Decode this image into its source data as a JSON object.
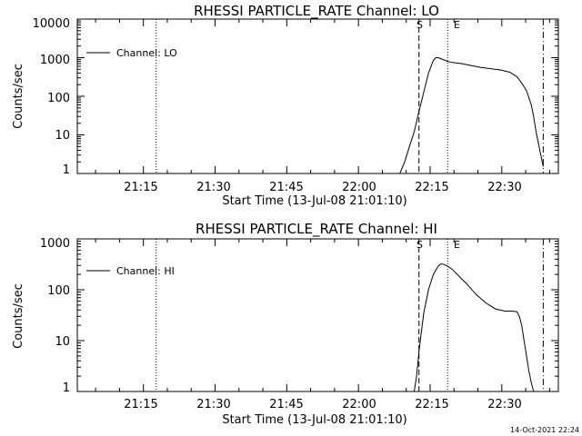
{
  "timestamp": "14-Oct-2021 22:24",
  "chart_data": [
    {
      "type": "line",
      "title": "RHESSI PARTICLE_RATE Channel: LO",
      "xlabel": "Start Time (13-Jul-08 21:01:10)",
      "ylabel": "Counts/sec",
      "yscale": "log",
      "ylim": [
        1,
        10000
      ],
      "xlim": [
        "21:01:10",
        "22:41:50"
      ],
      "x_ticks": [
        "21:15",
        "21:30",
        "21:45",
        "22:00",
        "22:15",
        "22:30"
      ],
      "y_ticks": [
        "1",
        "10",
        "100",
        "1000",
        "10000"
      ],
      "legend": {
        "position": "top-left",
        "entries": [
          "Channel: LO"
        ]
      },
      "markers": [
        {
          "label": "",
          "time": "21:17:40",
          "style": "dotted"
        },
        {
          "label": "S",
          "time": "22:12:40",
          "style": "dashed"
        },
        {
          "label": "E",
          "time": "22:18:40",
          "style": "dotted"
        },
        {
          "label": "",
          "time": "22:38:40",
          "style": "dash-dot"
        }
      ],
      "series": [
        {
          "name": "Channel: LO",
          "x": [
            "22:08:40",
            "22:09:40",
            "22:10:40",
            "22:11:40",
            "22:12:40",
            "22:13:40",
            "22:14:40",
            "22:15:40",
            "22:16:10",
            "22:16:40",
            "22:17:40",
            "22:18:40",
            "22:19:40",
            "22:21:40",
            "22:23:40",
            "22:25:40",
            "22:27:40",
            "22:29:40",
            "22:31:40",
            "22:33:10",
            "22:34:10",
            "22:35:10",
            "22:36:10",
            "22:36:40",
            "22:37:10",
            "22:37:40",
            "22:38:10",
            "22:38:40"
          ],
          "y": [
            1,
            2,
            5,
            12,
            40,
            130,
            400,
            850,
            1000,
            1000,
            900,
            800,
            750,
            700,
            620,
            560,
            520,
            480,
            420,
            320,
            220,
            140,
            60,
            30,
            12,
            6,
            3,
            1.5
          ]
        }
      ]
    },
    {
      "type": "line",
      "title": "RHESSI PARTICLE_RATE Channel: HI",
      "xlabel": "Start Time (13-Jul-08 21:01:10)",
      "ylabel": "Counts/sec",
      "yscale": "log",
      "ylim": [
        1,
        1000
      ],
      "xlim": [
        "21:01:10",
        "22:41:50"
      ],
      "x_ticks": [
        "21:15",
        "21:30",
        "21:45",
        "22:00",
        "22:15",
        "22:30"
      ],
      "y_ticks": [
        "1",
        "10",
        "100",
        "1000"
      ],
      "legend": {
        "position": "top-left",
        "entries": [
          "Channel: HI"
        ]
      },
      "markers": [
        {
          "label": "",
          "time": "21:17:40",
          "style": "dotted"
        },
        {
          "label": "S",
          "time": "22:12:40",
          "style": "dashed"
        },
        {
          "label": "E",
          "time": "22:18:40",
          "style": "dotted"
        },
        {
          "label": "",
          "time": "22:38:40",
          "style": "dash-dot"
        }
      ],
      "series": [
        {
          "name": "Channel: HI",
          "x": [
            "22:11:40",
            "22:12:10",
            "22:12:40",
            "22:13:10",
            "22:13:40",
            "22:14:40",
            "22:15:40",
            "22:16:40",
            "22:17:10",
            "22:17:40",
            "22:18:40",
            "22:19:40",
            "22:20:40",
            "22:22:40",
            "22:24:40",
            "22:26:40",
            "22:28:40",
            "22:30:40",
            "22:32:10",
            "22:33:10",
            "22:33:40",
            "22:34:10",
            "22:34:40",
            "22:35:10",
            "22:35:40",
            "22:36:10",
            "22:36:40",
            "22:37:10"
          ],
          "y": [
            1,
            2,
            6,
            15,
            35,
            100,
            200,
            290,
            320,
            320,
            290,
            250,
            200,
            130,
            80,
            55,
            42,
            38,
            38,
            37,
            30,
            20,
            10,
            5,
            2.5,
            1.5,
            1,
            0.8
          ]
        }
      ]
    }
  ]
}
